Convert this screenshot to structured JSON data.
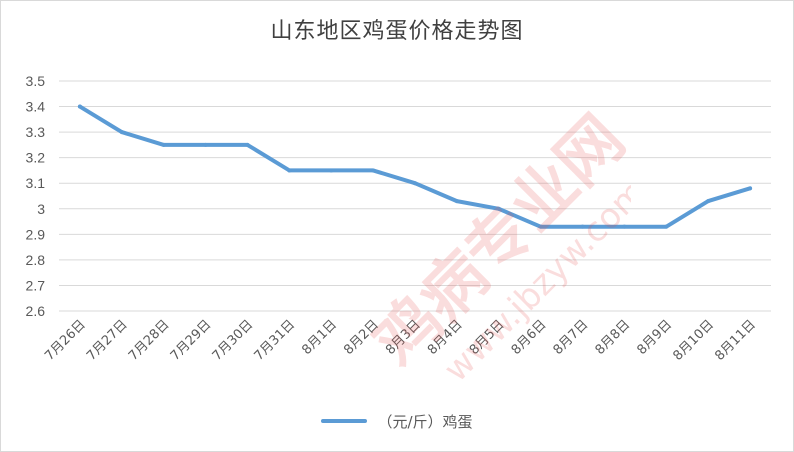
{
  "chart_data": {
    "type": "line",
    "title": "山东地区鸡蛋价格走势图",
    "xlabel": "",
    "ylabel": "",
    "categories": [
      "7月26日",
      "7月27日",
      "7月28日",
      "7月29日",
      "7月30日",
      "7月31日",
      "8月1日",
      "8月2日",
      "8月3日",
      "8月4日",
      "8月5日",
      "8月6日",
      "8月7日",
      "8月8日",
      "8月9日",
      "8月10日",
      "8月11日"
    ],
    "series": [
      {
        "name": "（元/斤）鸡蛋",
        "values": [
          3.4,
          3.3,
          3.25,
          3.25,
          3.25,
          3.15,
          3.15,
          3.15,
          3.1,
          3.03,
          3.0,
          2.93,
          2.93,
          2.93,
          2.93,
          3.03,
          3.08
        ]
      }
    ],
    "ylim": [
      2.6,
      3.5
    ],
    "yticks": [
      2.6,
      2.7,
      2.8,
      2.9,
      3.0,
      3.1,
      3.2,
      3.3,
      3.4,
      3.5
    ],
    "ytick_labels": [
      "2.6",
      "2.7",
      "2.8",
      "2.9",
      "3",
      "3.1",
      "3.2",
      "3.3",
      "3.4",
      "3.5"
    ],
    "grid": true,
    "legend_position": "bottom",
    "line_color": "#5b9bd5"
  },
  "watermark": {
    "text_main": "鸡病专业网",
    "text_url": "www.jbzyw.com",
    "color": "#e84b4b"
  }
}
